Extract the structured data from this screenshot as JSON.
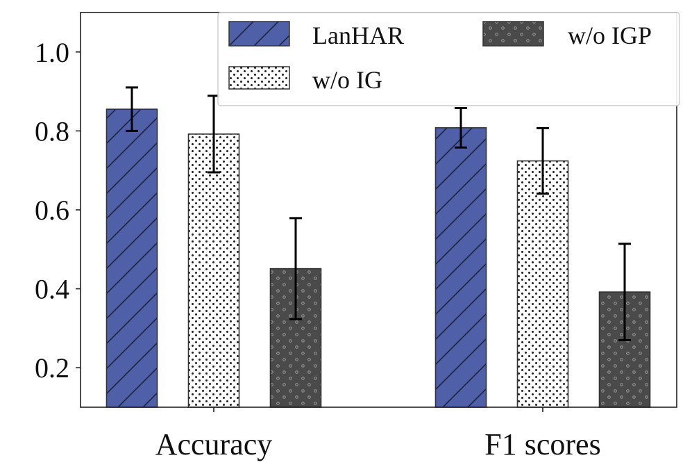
{
  "chart_data": {
    "type": "bar",
    "title": "",
    "xlabel": "",
    "ylabel": "",
    "ylim": [
      0.1,
      1.1
    ],
    "yticks": [
      0.2,
      0.4,
      0.6,
      0.8,
      1.0
    ],
    "ytick_labels": [
      "0.2",
      "0.4",
      "0.6",
      "0.8",
      "1.0"
    ],
    "grid": false,
    "categories": [
      "Accuracy",
      "F1 scores"
    ],
    "series": [
      {
        "name": "LanHAR",
        "values": [
          0.855,
          0.808
        ],
        "err": [
          0.055,
          0.05
        ],
        "color": "#5060a8",
        "pattern": "hatch"
      },
      {
        "name": "w/o IG",
        "values": [
          0.792,
          0.724
        ],
        "err": [
          0.097,
          0.083
        ],
        "color": "#ffffff",
        "pattern": "dots"
      },
      {
        "name": "w/o IGP",
        "values": [
          0.451,
          0.392
        ],
        "err": [
          0.128,
          0.122
        ],
        "color": "#4a4a4a",
        "pattern": "circles"
      }
    ],
    "legend": {
      "position": "top-right",
      "columns": 2
    }
  }
}
